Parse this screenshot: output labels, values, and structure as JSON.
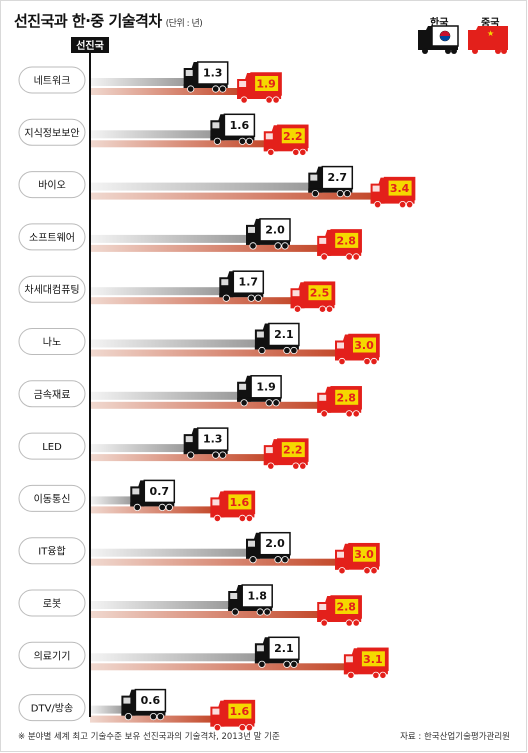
{
  "title": "선진국과 한·중 기술격차",
  "unit": "(단위 : 년)",
  "baseline_label": "선진국",
  "legend": {
    "korea": "한국",
    "china": "중국"
  },
  "footnote": "※ 분야별 세계 최고 기술수준 보유 선진국과의 기술격차, 2013년 말 기준",
  "source": "자료 : 한국산업기술평가관리원",
  "colors": {
    "korea_truck": "#111111",
    "china_truck": "#e3201b",
    "china_value_box": "#f5d800",
    "china_value_text": "#e3201b",
    "baseline": "#111111"
  },
  "chart_data": {
    "type": "bar",
    "title": "선진국과 한·중 기술격차",
    "unit": "년",
    "categories": [
      "네트워크",
      "지식정보보안",
      "바이오",
      "소프트웨어",
      "차세대컴퓨팅",
      "나노",
      "금속재료",
      "LED",
      "이동통신",
      "IT융합",
      "로봇",
      "의료기기",
      "DTV/방송"
    ],
    "series": [
      {
        "name": "한국",
        "values": [
          1.3,
          1.6,
          2.7,
          2.0,
          1.7,
          2.1,
          1.9,
          1.3,
          0.7,
          2.0,
          1.8,
          2.1,
          0.6
        ]
      },
      {
        "name": "중국",
        "values": [
          1.9,
          2.2,
          3.4,
          2.8,
          2.5,
          3.0,
          2.8,
          2.2,
          1.6,
          3.0,
          2.8,
          3.1,
          1.6
        ]
      }
    ],
    "value_labels": {
      "korea": [
        "1.3",
        "1.6",
        "2.7",
        "2.0",
        "1.7",
        "2.1",
        "1.9",
        "1.3",
        "0.7",
        "2.0",
        "1.8",
        "2.1",
        "0.6"
      ],
      "china": [
        "1.9",
        "2.2",
        "3.4",
        "2.8",
        "2.5",
        "3.0",
        "2.8",
        "2.2",
        "1.6",
        "3.0",
        "2.8",
        "3.1",
        "1.6"
      ]
    }
  }
}
